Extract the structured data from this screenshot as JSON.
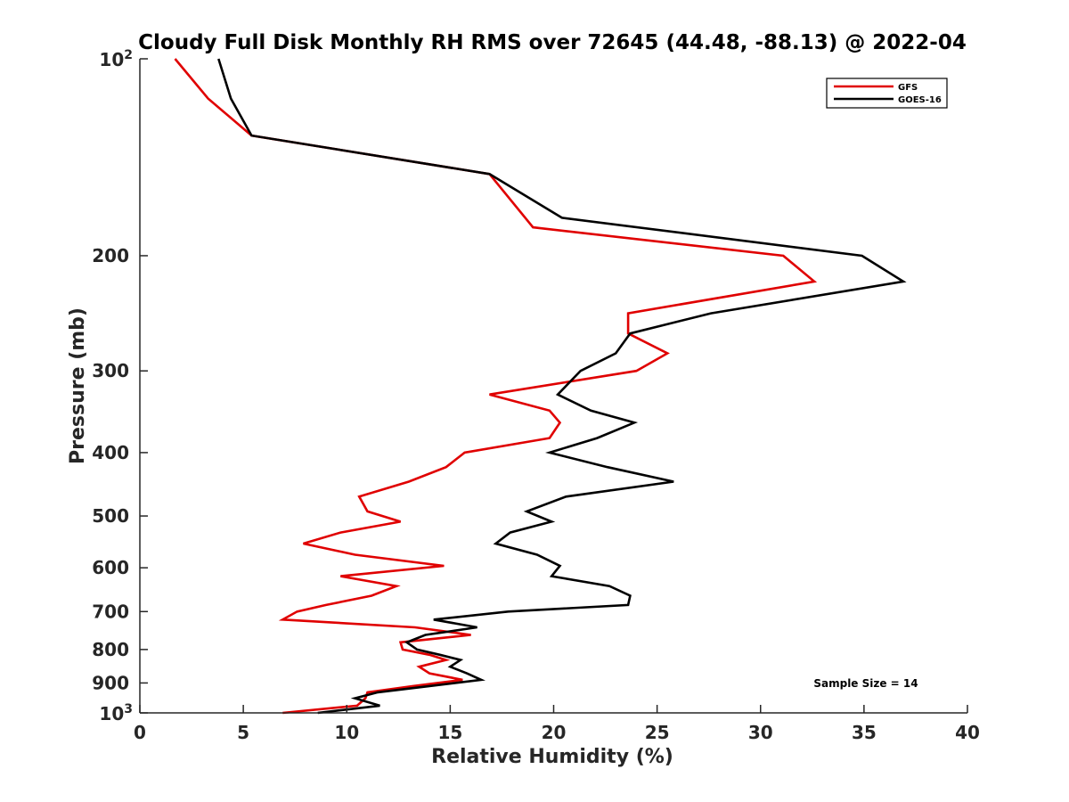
{
  "chart_data": {
    "type": "line",
    "title": "Cloudy Full Disk Monthly RH RMS over 72645 (44.48, -88.13) @ 2022-04",
    "xlabel": "Relative Humidity (%)",
    "ylabel": "Pressure (mb)",
    "xlim": [
      0,
      40
    ],
    "ylim": [
      100,
      1000
    ],
    "y_scale": "log",
    "y_reversed": true,
    "grid": false,
    "legend_position": "top-right",
    "x_ticks": [
      0,
      5,
      10,
      15,
      20,
      25,
      30,
      35,
      40
    ],
    "x_tick_labels": [
      "0",
      "5",
      "10",
      "15",
      "20",
      "25",
      "30",
      "35",
      "40"
    ],
    "y_ticks": [
      200,
      300,
      400,
      500,
      600,
      700,
      800,
      900
    ],
    "y_tick_labels": [
      "200",
      "300",
      "400",
      "500",
      "600",
      "700",
      "800",
      "900"
    ],
    "y_end_labels": [
      {
        "value": 100,
        "base": "10",
        "exp": "2"
      },
      {
        "value": 1000,
        "base": "10",
        "exp": "3"
      }
    ],
    "annotation": "Sample Size = 14",
    "series": [
      {
        "name": "GFS",
        "color": "#e00000",
        "points": [
          [
            1.7,
            100
          ],
          [
            3.3,
            115
          ],
          [
            5.4,
            131
          ],
          [
            16.9,
            150
          ],
          [
            19.0,
            181
          ],
          [
            31.1,
            200
          ],
          [
            32.6,
            219
          ],
          [
            23.6,
            245
          ],
          [
            23.6,
            263
          ],
          [
            25.5,
            282
          ],
          [
            24.0,
            300
          ],
          [
            16.9,
            326
          ],
          [
            19.8,
            345
          ],
          [
            20.3,
            360
          ],
          [
            19.8,
            380
          ],
          [
            15.7,
            400
          ],
          [
            14.8,
            421
          ],
          [
            13.0,
            443
          ],
          [
            10.6,
            467
          ],
          [
            11.0,
            492
          ],
          [
            12.6,
            510
          ],
          [
            9.7,
            530
          ],
          [
            7.9,
            551
          ],
          [
            10.4,
            573
          ],
          [
            14.7,
            596
          ],
          [
            9.7,
            618
          ],
          [
            12.4,
            640
          ],
          [
            11.2,
            662
          ],
          [
            9.0,
            684
          ],
          [
            7.6,
            700
          ],
          [
            6.9,
            720
          ],
          [
            13.3,
            740
          ],
          [
            16.0,
            760
          ],
          [
            12.6,
            780
          ],
          [
            12.7,
            800
          ],
          [
            14.0,
            815
          ],
          [
            14.8,
            830
          ],
          [
            13.5,
            850
          ],
          [
            14.0,
            870
          ],
          [
            15.6,
            890
          ],
          [
            13.2,
            910
          ],
          [
            11.0,
            930
          ],
          [
            10.9,
            950
          ],
          [
            10.5,
            975
          ],
          [
            6.9,
            1000
          ]
        ]
      },
      {
        "name": "GOES-16",
        "color": "#000000",
        "points": [
          [
            3.8,
            100
          ],
          [
            4.4,
            115
          ],
          [
            5.4,
            131
          ],
          [
            16.9,
            150
          ],
          [
            20.4,
            175
          ],
          [
            34.9,
            200
          ],
          [
            36.9,
            219
          ],
          [
            27.6,
            245
          ],
          [
            23.7,
            263
          ],
          [
            23.0,
            282
          ],
          [
            21.3,
            300
          ],
          [
            20.2,
            326
          ],
          [
            21.8,
            345
          ],
          [
            23.9,
            360
          ],
          [
            22.1,
            380
          ],
          [
            19.8,
            400
          ],
          [
            22.6,
            421
          ],
          [
            25.8,
            443
          ],
          [
            20.6,
            467
          ],
          [
            18.7,
            492
          ],
          [
            19.9,
            510
          ],
          [
            17.9,
            530
          ],
          [
            17.2,
            551
          ],
          [
            19.2,
            573
          ],
          [
            20.3,
            596
          ],
          [
            19.9,
            618
          ],
          [
            22.7,
            640
          ],
          [
            23.7,
            662
          ],
          [
            23.6,
            684
          ],
          [
            17.8,
            700
          ],
          [
            14.2,
            720
          ],
          [
            16.3,
            740
          ],
          [
            13.8,
            760
          ],
          [
            12.9,
            780
          ],
          [
            13.4,
            800
          ],
          [
            14.5,
            815
          ],
          [
            15.5,
            830
          ],
          [
            15.0,
            850
          ],
          [
            15.8,
            870
          ],
          [
            16.5,
            890
          ],
          [
            14.0,
            910
          ],
          [
            11.5,
            930
          ],
          [
            10.4,
            950
          ],
          [
            11.6,
            975
          ],
          [
            8.6,
            1000
          ]
        ]
      }
    ]
  }
}
